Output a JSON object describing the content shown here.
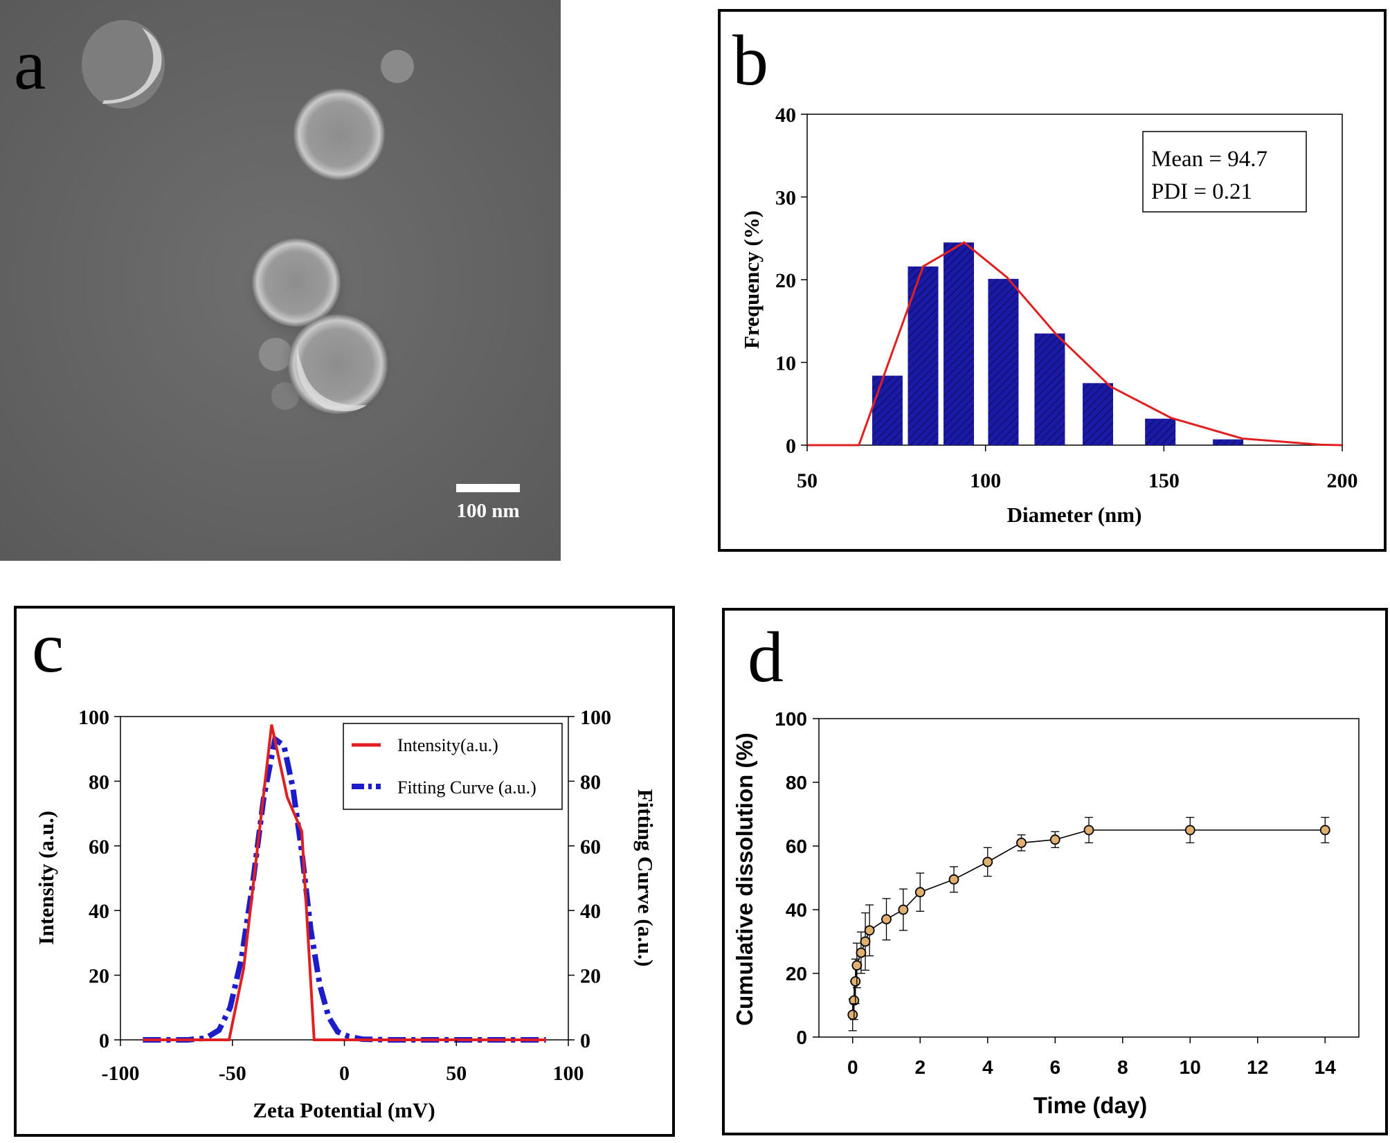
{
  "panels": {
    "a": {
      "letter": "a",
      "scale_bar_label": "100 nm"
    },
    "b": {
      "letter": "b",
      "stats_mean": "Mean = 94.7",
      "stats_pdi": "PDI = 0.21"
    },
    "c": {
      "letter": "c",
      "legend": [
        "Intensity(a.u.)",
        "Fitting Curve (a.u.)"
      ]
    },
    "d": {
      "letter": "d"
    }
  },
  "colors": {
    "bar_fill": "#1a1aa6",
    "fit_line": "#e02020",
    "intensity_line": "#e02020",
    "fitting_curve": "#1c1cc8",
    "marker_fill": "#e0b070"
  },
  "chart_data": [
    {
      "panel": "b",
      "type": "bar",
      "xlabel": "Diameter (nm)",
      "ylabel": "Frequency (%)",
      "xlim": [
        50,
        200
      ],
      "ylim": [
        0,
        40
      ],
      "xticks": [
        "50",
        "100",
        "150",
        "200"
      ],
      "yticks": [
        "0",
        "10",
        "20",
        "30",
        "40"
      ],
      "bar_pattern": "diagonal hatch",
      "bars": {
        "x": [
          72.5,
          82.5,
          92.5,
          105,
          118,
          131.5,
          149,
          168
        ],
        "values": [
          8.4,
          21.6,
          24.5,
          20.1,
          13.5,
          7.5,
          3.2,
          0.7
        ]
      },
      "fit_line": {
        "x": [
          50,
          64.5,
          82.5,
          94,
          106,
          120,
          135,
          152,
          172,
          194,
          200
        ],
        "y": [
          0,
          0,
          21.6,
          24.5,
          20.3,
          13.3,
          7.1,
          3.3,
          0.8,
          0.05,
          0
        ]
      },
      "grid": false
    },
    {
      "panel": "c",
      "type": "line",
      "xlabel": "Zeta Potential (mV)",
      "ylabel": "Intensity (a.u.)",
      "y2label": "Fitting Curve (a.u.)",
      "xlim": [
        -100,
        100
      ],
      "ylim": [
        0,
        100
      ],
      "xticks": [
        "-100",
        "-50",
        "0",
        "50",
        "100"
      ],
      "yticks": [
        "0",
        "20",
        "40",
        "60",
        "80",
        "100"
      ],
      "legend_position": "top-right",
      "series": [
        {
          "name": "Intensity(a.u.)",
          "style": "solid",
          "x": [
            -90,
            -51.5,
            -45,
            -32.5,
            -25.5,
            -19,
            -13.5,
            90
          ],
          "y": [
            0,
            0,
            22,
            97.5,
            75,
            64.5,
            0,
            0
          ]
        },
        {
          "name": "Fitting Curve (a.u.)",
          "style": "dash-dot",
          "x": [
            -90,
            -70,
            -62,
            -56,
            -51,
            -46,
            -41,
            -36,
            -31,
            -27,
            -23,
            -19,
            -15,
            -11,
            -7,
            -3,
            2,
            8,
            20,
            40,
            60,
            90
          ],
          "y": [
            0,
            0,
            0.5,
            3,
            10,
            25,
            48,
            75,
            93,
            91,
            78,
            58,
            34,
            17,
            7,
            2.5,
            1,
            0.2,
            0,
            0,
            0,
            0
          ]
        }
      ],
      "grid": false
    },
    {
      "panel": "d",
      "type": "line",
      "xlabel": "Time (day)",
      "ylabel": "Cumulative  dissolution (%)",
      "xlim": [
        -1,
        15
      ],
      "ylim": [
        0,
        100
      ],
      "xticks": [
        "0",
        "2",
        "4",
        "6",
        "8",
        "10",
        "12",
        "14"
      ],
      "yticks": [
        "0",
        "20",
        "40",
        "60",
        "80",
        "100"
      ],
      "series": [
        {
          "x": [
            0,
            0.042,
            0.083,
            0.125,
            0.25,
            0.375,
            0.5,
            1,
            1.5,
            2,
            3,
            4,
            5,
            6,
            7,
            10,
            14
          ],
          "y": [
            7,
            11.5,
            17.5,
            22.5,
            26.5,
            30,
            33.5,
            37,
            40,
            45.5,
            49.5,
            55,
            61,
            62,
            65,
            65,
            65
          ],
          "err": [
            5,
            6,
            7,
            7,
            6.5,
            9,
            8,
            6.5,
            6.5,
            6,
            4,
            4.5,
            2.5,
            2.5,
            4,
            4,
            4
          ]
        }
      ],
      "grid": false
    }
  ]
}
